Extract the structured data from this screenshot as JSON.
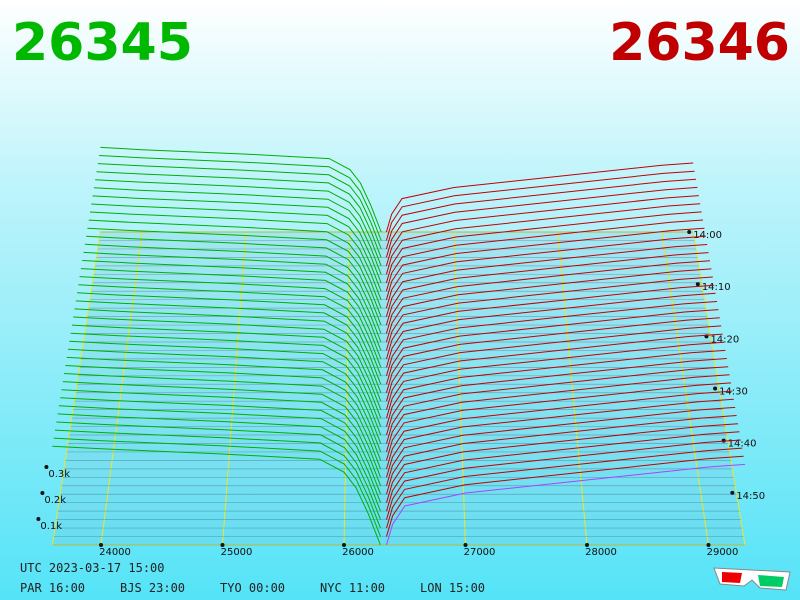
{
  "chart_data": {
    "type": "depth3d",
    "bid": 26345,
    "ask": 26346,
    "bid_color": "#00b800",
    "ask_color": "#c00000",
    "xlim": [
      23600,
      29300
    ],
    "xticks": [
      24000,
      25000,
      26000,
      27000,
      28000,
      29000
    ],
    "zticks": [
      {
        "value": 0.1,
        "label": "0.1k"
      },
      {
        "value": 0.2,
        "label": "0.2k"
      },
      {
        "value": 0.3,
        "label": "0.3k"
      }
    ],
    "time_ticks": [
      "14:00",
      "14:10",
      "14:20",
      "14:30",
      "14:40",
      "14:50"
    ],
    "series": [
      {
        "color": "#00b000",
        "x": [
          23600,
          24000,
          25000,
          25800,
          26000,
          26100,
          26200,
          26300
        ],
        "values": [
          0.38,
          0.37,
          0.35,
          0.33,
          0.28,
          0.22,
          0.12,
          0
        ]
      },
      {
        "color": "#c00000",
        "x": [
          26350,
          26400,
          26500,
          27000,
          28000,
          29000,
          29300
        ],
        "values": [
          0,
          0.08,
          0.15,
          0.2,
          0.25,
          0.3,
          0.31
        ]
      }
    ],
    "latest_color": "#b040ff",
    "grid_color": "#e8e830",
    "footer": {
      "utc": "UTC 2023-03-17 15:00",
      "zones": [
        "PAR 16:00",
        "BJS 23:00",
        "TYO 00:00",
        "NYC 11:00",
        "LON 15:00"
      ]
    }
  }
}
